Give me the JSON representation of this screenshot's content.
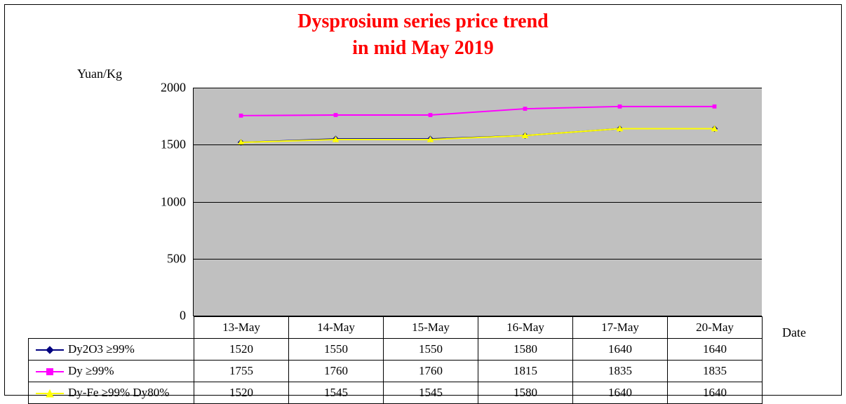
{
  "title_line1": "Dysprosium series price trend",
  "title_line2": "in mid May 2019",
  "y_axis_label": "Yuan/Kg",
  "x_axis_label": "Date",
  "chart": {
    "type": "line",
    "background_color": "#c0c0c0",
    "grid_color": "#000000",
    "ylim": [
      0,
      2000
    ],
    "ytick_step": 500,
    "yticks": [
      0,
      500,
      1000,
      1500,
      2000
    ],
    "categories": [
      "13-May",
      "14-May",
      "15-May",
      "16-May",
      "17-May",
      "20-May"
    ],
    "title_color": "#ff0000",
    "title_fontsize": 28,
    "label_fontsize": 18,
    "series": [
      {
        "name": "Dy2O3 ≥99%",
        "color": "#000080",
        "marker": "diamond",
        "marker_fill": "#000080",
        "values": [
          1520,
          1550,
          1550,
          1580,
          1640,
          1640
        ]
      },
      {
        "name": "Dy ≥99%",
        "color": "#ff00ff",
        "marker": "square",
        "marker_fill": "#ff00ff",
        "values": [
          1755,
          1760,
          1760,
          1815,
          1835,
          1835
        ]
      },
      {
        "name": "Dy-Fe ≥99% Dy80%",
        "color": "#ffff00",
        "marker": "triangle",
        "marker_fill": "#ffff00",
        "values": [
          1520,
          1545,
          1545,
          1580,
          1640,
          1640
        ]
      }
    ],
    "line_width": 2,
    "marker_size": 8
  }
}
